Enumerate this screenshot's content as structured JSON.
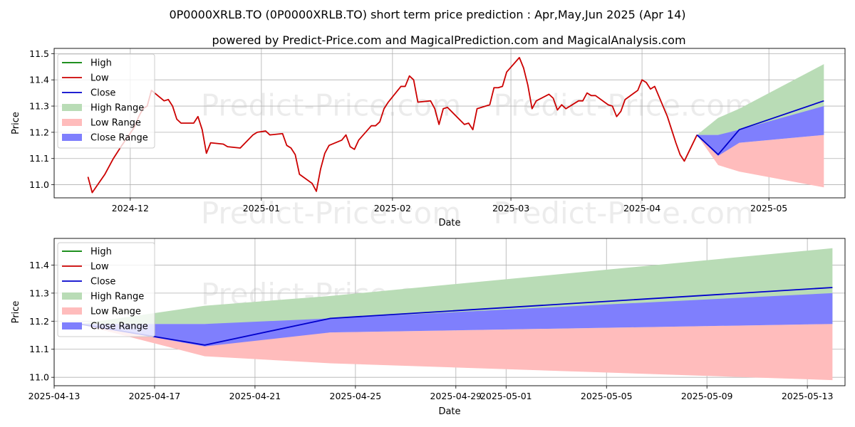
{
  "title": "0P0000XRLB.TO (0P0000XRLB.TO) short term price prediction : Apr,May,Jun 2025 (Apr 14)",
  "subtitle": "powered by Predict-Price.com and MagicalPrediction.com and MagicalAnalysis.com",
  "watermark": "Predict-Price.com",
  "legend_labels": [
    "High",
    "Low",
    "Close",
    "High Range",
    "Low Range",
    "Close Range"
  ],
  "colors": {
    "high": "#008000",
    "low": "#cc0000",
    "close": "#0000cc",
    "high_range": "#b9dcb6",
    "low_range": "#ffbcbc",
    "close_range": "#7f7ffd",
    "grid": "#b0b0b0"
  },
  "chart_data": [
    {
      "type": "line",
      "panel": "top",
      "xlabel": "Date",
      "ylabel": "Price",
      "xlim": [
        "2024-11-13",
        "2025-05-19"
      ],
      "ylim": [
        10.95,
        11.52
      ],
      "x_ticks": [
        {
          "date": "2024-12-01",
          "label": "2024-12"
        },
        {
          "date": "2025-01-01",
          "label": "2025-01"
        },
        {
          "date": "2025-02-01",
          "label": "2025-02"
        },
        {
          "date": "2025-03-01",
          "label": "2025-03"
        },
        {
          "date": "2025-04-01",
          "label": "2025-04"
        },
        {
          "date": "2025-05-01",
          "label": "2025-05"
        }
      ],
      "y_ticks": [
        11.0,
        11.1,
        11.2,
        11.3,
        11.4,
        11.5
      ],
      "y_tick_labels": [
        "11.0",
        "11.1",
        "11.2",
        "11.3",
        "11.4",
        "11.5"
      ],
      "grid": true,
      "legend": "top-left",
      "history": {
        "name": "Low",
        "points": [
          [
            "2024-11-21",
            11.03
          ],
          [
            "2024-11-22",
            10.97
          ],
          [
            "2024-11-25",
            11.04
          ],
          [
            "2024-11-27",
            11.1
          ],
          [
            "2024-11-29",
            11.15
          ],
          [
            "2024-12-02",
            11.22
          ],
          [
            "2024-12-03",
            11.26
          ],
          [
            "2024-12-04",
            11.29
          ],
          [
            "2024-12-05",
            11.3
          ],
          [
            "2024-12-06",
            11.36
          ],
          [
            "2024-12-09",
            11.32
          ],
          [
            "2024-12-10",
            11.325
          ],
          [
            "2024-12-11",
            11.3
          ],
          [
            "2024-12-12",
            11.25
          ],
          [
            "2024-12-13",
            11.235
          ],
          [
            "2024-12-16",
            11.235
          ],
          [
            "2024-12-17",
            11.26
          ],
          [
            "2024-12-18",
            11.21
          ],
          [
            "2024-12-19",
            11.12
          ],
          [
            "2024-12-20",
            11.16
          ],
          [
            "2024-12-23",
            11.155
          ],
          [
            "2024-12-24",
            11.145
          ],
          [
            "2024-12-27",
            11.14
          ],
          [
            "2024-12-30",
            11.19
          ],
          [
            "2024-12-31",
            11.2
          ],
          [
            "2025-01-02",
            11.205
          ],
          [
            "2025-01-03",
            11.19
          ],
          [
            "2025-01-06",
            11.195
          ],
          [
            "2025-01-07",
            11.15
          ],
          [
            "2025-01-08",
            11.14
          ],
          [
            "2025-01-09",
            11.115
          ],
          [
            "2025-01-10",
            11.04
          ],
          [
            "2025-01-13",
            11.005
          ],
          [
            "2025-01-14",
            10.975
          ],
          [
            "2025-01-15",
            11.06
          ],
          [
            "2025-01-16",
            11.12
          ],
          [
            "2025-01-17",
            11.15
          ],
          [
            "2025-01-20",
            11.17
          ],
          [
            "2025-01-21",
            11.19
          ],
          [
            "2025-01-22",
            11.145
          ],
          [
            "2025-01-23",
            11.135
          ],
          [
            "2025-01-24",
            11.17
          ],
          [
            "2025-01-27",
            11.225
          ],
          [
            "2025-01-28",
            11.225
          ],
          [
            "2025-01-29",
            11.24
          ],
          [
            "2025-01-30",
            11.29
          ],
          [
            "2025-01-31",
            11.315
          ],
          [
            "2025-02-03",
            11.375
          ],
          [
            "2025-02-04",
            11.375
          ],
          [
            "2025-02-05",
            11.415
          ],
          [
            "2025-02-06",
            11.4
          ],
          [
            "2025-02-07",
            11.315
          ],
          [
            "2025-02-10",
            11.32
          ],
          [
            "2025-02-11",
            11.29
          ],
          [
            "2025-02-12",
            11.23
          ],
          [
            "2025-02-13",
            11.29
          ],
          [
            "2025-02-14",
            11.295
          ],
          [
            "2025-02-18",
            11.23
          ],
          [
            "2025-02-19",
            11.235
          ],
          [
            "2025-02-20",
            11.21
          ],
          [
            "2025-02-21",
            11.29
          ],
          [
            "2025-02-24",
            11.305
          ],
          [
            "2025-02-25",
            11.37
          ],
          [
            "2025-02-26",
            11.37
          ],
          [
            "2025-02-27",
            11.375
          ],
          [
            "2025-02-28",
            11.43
          ],
          [
            "2025-03-03",
            11.485
          ],
          [
            "2025-03-04",
            11.445
          ],
          [
            "2025-03-05",
            11.38
          ],
          [
            "2025-03-06",
            11.29
          ],
          [
            "2025-03-07",
            11.32
          ],
          [
            "2025-03-10",
            11.345
          ],
          [
            "2025-03-11",
            11.33
          ],
          [
            "2025-03-12",
            11.285
          ],
          [
            "2025-03-13",
            11.305
          ],
          [
            "2025-03-14",
            11.29
          ],
          [
            "2025-03-17",
            11.32
          ],
          [
            "2025-03-18",
            11.32
          ],
          [
            "2025-03-19",
            11.35
          ],
          [
            "2025-03-20",
            11.34
          ],
          [
            "2025-03-21",
            11.34
          ],
          [
            "2025-03-24",
            11.305
          ],
          [
            "2025-03-25",
            11.3
          ],
          [
            "2025-03-26",
            11.26
          ],
          [
            "2025-03-27",
            11.28
          ],
          [
            "2025-03-28",
            11.325
          ],
          [
            "2025-03-31",
            11.36
          ],
          [
            "2025-04-01",
            11.4
          ],
          [
            "2025-04-02",
            11.39
          ],
          [
            "2025-04-03",
            11.365
          ],
          [
            "2025-04-04",
            11.375
          ],
          [
            "2025-04-07",
            11.26
          ],
          [
            "2025-04-08",
            11.21
          ],
          [
            "2025-04-09",
            11.16
          ],
          [
            "2025-04-10",
            11.115
          ],
          [
            "2025-04-11",
            11.09
          ],
          [
            "2025-04-14",
            11.19
          ]
        ]
      },
      "forecast": {
        "dates": [
          "2025-04-14",
          "2025-04-19",
          "2025-04-24",
          "2025-05-14"
        ],
        "close": [
          11.19,
          11.115,
          11.21,
          11.32
        ],
        "high_range": {
          "upper": [
            11.19,
            11.255,
            11.29,
            11.46
          ],
          "lower": [
            11.19,
            11.19,
            11.19,
            11.19
          ]
        },
        "low_range": {
          "upper": [
            11.19,
            11.12,
            11.16,
            11.19
          ],
          "lower": [
            11.19,
            11.075,
            11.05,
            10.99
          ]
        },
        "close_range": {
          "upper": [
            11.19,
            11.19,
            11.21,
            11.3
          ],
          "lower": [
            11.19,
            11.11,
            11.16,
            11.19
          ]
        }
      }
    },
    {
      "type": "line",
      "panel": "bottom",
      "xlabel": "Date",
      "ylabel": "Price",
      "xlim": [
        "2025-04-13",
        "2025-05-14.5"
      ],
      "ylim": [
        10.97,
        11.495
      ],
      "x_ticks": [
        {
          "date": "2025-04-13",
          "label": "2025-04-13"
        },
        {
          "date": "2025-04-17",
          "label": "2025-04-17"
        },
        {
          "date": "2025-04-21",
          "label": "2025-04-21"
        },
        {
          "date": "2025-04-25",
          "label": "2025-04-25"
        },
        {
          "date": "2025-04-29",
          "label": "2025-04-29"
        },
        {
          "date": "2025-05-01",
          "label": "2025-05-01"
        },
        {
          "date": "2025-05-05",
          "label": "2025-05-05"
        },
        {
          "date": "2025-05-09",
          "label": "2025-05-09"
        },
        {
          "date": "2025-05-13",
          "label": "2025-05-13"
        }
      ],
      "y_ticks": [
        11.0,
        11.1,
        11.2,
        11.3,
        11.4
      ],
      "y_tick_labels": [
        "11.0",
        "11.1",
        "11.2",
        "11.3",
        "11.4"
      ],
      "grid": true,
      "legend": "top-left",
      "forecast": {
        "dates": [
          "2025-04-14",
          "2025-04-19",
          "2025-04-24",
          "2025-05-14"
        ],
        "close": [
          11.19,
          11.115,
          11.21,
          11.32
        ],
        "high_range": {
          "upper": [
            11.19,
            11.255,
            11.29,
            11.46
          ],
          "lower": [
            11.19,
            11.19,
            11.19,
            11.19
          ]
        },
        "low_range": {
          "upper": [
            11.19,
            11.12,
            11.16,
            11.19
          ],
          "lower": [
            11.19,
            11.075,
            11.05,
            10.99
          ]
        },
        "close_range": {
          "upper": [
            11.19,
            11.19,
            11.21,
            11.3
          ],
          "lower": [
            11.19,
            11.11,
            11.16,
            11.19
          ]
        }
      }
    }
  ]
}
